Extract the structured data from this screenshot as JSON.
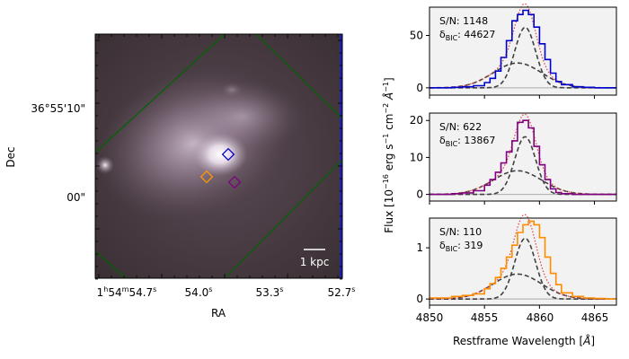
{
  "image_panel": {
    "xlabel": "RA",
    "ylabel": "Dec",
    "xticks": [
      {
        "main": "1",
        "u1": "h",
        "mid": "54",
        "u2": "m",
        "rest": "54.7",
        "u3": "s"
      },
      {
        "main": "54.0",
        "u3": "s"
      },
      {
        "main": "53.3",
        "u3": "s"
      },
      {
        "main": "52.7",
        "u3": "s"
      }
    ],
    "yticks": [
      "36°55'10\"",
      "00\""
    ],
    "scalebar_label": "1 kpc",
    "markers": [
      {
        "color": "#0000cc"
      },
      {
        "color": "#ff9900"
      },
      {
        "color": "#800080"
      }
    ],
    "frame_lines_color": "#006400"
  },
  "chart_data": [
    {
      "type": "line",
      "annotation": {
        "sn": "S/N: 1148",
        "bic_val": ": 44627"
      },
      "xlim": [
        4850,
        4867
      ],
      "ylim": [
        -7,
        77
      ],
      "yticks": [
        0,
        50
      ],
      "color": "#0000cc",
      "x": [
        4850,
        4851,
        4852,
        4853,
        4854,
        4855,
        4855.5,
        4856,
        4856.5,
        4857,
        4857.5,
        4858,
        4858.5,
        4859,
        4859.5,
        4860,
        4860.5,
        4861,
        4861.5,
        4862,
        4863,
        4864,
        4865,
        4866,
        4867
      ],
      "values": [
        0,
        0,
        0.5,
        1,
        2,
        5,
        9,
        16,
        29,
        45,
        64,
        70,
        74,
        70,
        58,
        42,
        27,
        14,
        6,
        3,
        1,
        0.5,
        0,
        0,
        0
      ]
    },
    {
      "type": "line",
      "annotation": {
        "sn": "S/N: 622",
        "bic_val": ": 13867"
      },
      "xlim": [
        4850,
        4867
      ],
      "ylim": [
        -1.8,
        22
      ],
      "yticks": [
        0,
        10,
        20
      ],
      "color": "#800080",
      "x": [
        4850,
        4851,
        4852,
        4853,
        4854,
        4855,
        4855.5,
        4856,
        4856.5,
        4857,
        4857.5,
        4858,
        4858.5,
        4859,
        4859.5,
        4860,
        4860.5,
        4861,
        4861.5,
        4862,
        4863,
        4864,
        4865,
        4866,
        4867
      ],
      "values": [
        0,
        0,
        0.2,
        0.4,
        1,
        2.5,
        4,
        6,
        8.5,
        11.5,
        14.5,
        19.5,
        20,
        18,
        13,
        8,
        4,
        1.5,
        0.5,
        0.2,
        0,
        0,
        0,
        0,
        0
      ]
    },
    {
      "type": "line",
      "annotation": {
        "sn": "S/N: 110",
        "bic_val": ": 319"
      },
      "xlim": [
        4850,
        4867
      ],
      "ylim": [
        -0.12,
        1.58
      ],
      "yticks": [
        0,
        1
      ],
      "color": "#ff8c00",
      "x": [
        4850,
        4851,
        4852,
        4853,
        4854,
        4855,
        4855.5,
        4856,
        4856.5,
        4857,
        4857.5,
        4858,
        4858.5,
        4859,
        4859.5,
        4860,
        4860.5,
        4861,
        4861.5,
        4862,
        4863,
        4864,
        4865,
        4866,
        4867
      ],
      "values": [
        0.02,
        0.02,
        0.05,
        0.07,
        0.1,
        0.2,
        0.3,
        0.42,
        0.6,
        0.82,
        1.05,
        1.3,
        1.45,
        1.52,
        1.45,
        1.2,
        0.82,
        0.5,
        0.28,
        0.12,
        0.05,
        0.02,
        0.01,
        0,
        0
      ]
    }
  ],
  "shared_xticks": [
    "4850",
    "4855",
    "4860",
    "4865"
  ],
  "shared_xlabel": "Restframe Wavelength [",
  "shared_xlabel_unit": "Å",
  "shared_ylabel": "Flux [10",
  "shared_ylabel_exp": "−16",
  "shared_ylabel_mid": " erg s",
  "shared_ylabel_exp2": "−1",
  "shared_ylabel_mid2": " cm",
  "shared_ylabel_exp3": "−2",
  "shared_ylabel_end": " Å",
  "shared_ylabel_exp4": "−1",
  "shared_ylabel_close": "]",
  "bic_prefix": "δ",
  "bic_sub": "BIC"
}
